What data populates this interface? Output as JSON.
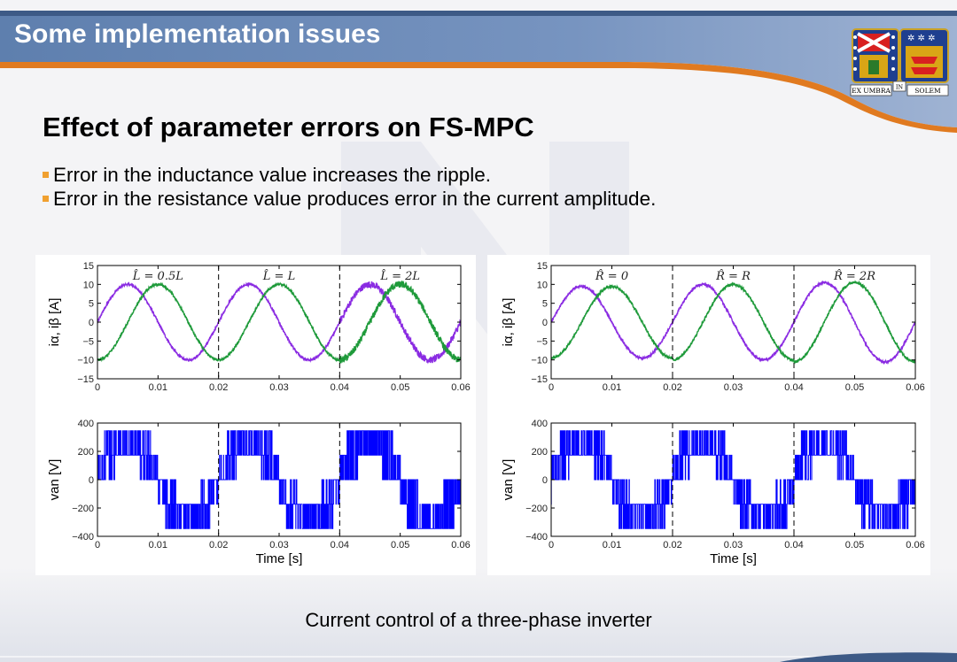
{
  "header": {
    "title": "Some implementation issues"
  },
  "logo": {
    "motto_left": "EX UMBRA",
    "motto_mid": "IN",
    "motto_right": "SOLEM"
  },
  "slide": {
    "heading": "Effect of parameter errors on FS-MPC",
    "bullets": [
      "Error in the inductance value increases the ripple.",
      "Error in the resistance value produces error in the current amplitude."
    ],
    "caption": "Current control of a three-phase inverter"
  },
  "colors": {
    "header": "#6f8db8",
    "accent": "#f0a030",
    "ialpha": "#8a2be2",
    "ibeta": "#1e9a3a",
    "voltage": "#0000ff"
  },
  "chart_data": [
    {
      "type": "line",
      "ylabel": "iα, iβ [A]",
      "xlim": [
        0,
        0.06
      ],
      "ylim": [
        -15,
        15
      ],
      "xticks": [
        "0",
        "0.01",
        "0.02",
        "0.03",
        "0.04",
        "0.05",
        "0.06"
      ],
      "yticks": [
        "15",
        "10",
        "5",
        "0",
        "−5",
        "−10",
        "−15"
      ],
      "dividers": [
        0.02,
        0.04
      ],
      "annotations": [
        {
          "x": 0.01,
          "text": "L̂ = 0.5L"
        },
        {
          "x": 0.03,
          "text": "L̂ = L"
        },
        {
          "x": 0.05,
          "text": "L̂ = 2L"
        }
      ],
      "series": [
        {
          "amplitude": 10,
          "frequency_hz": 50,
          "phase_deg": 0
        },
        {
          "amplitude": 10,
          "frequency_hz": 50,
          "phase_deg": -90
        }
      ],
      "ripple_amplitude": [
        0.3,
        0.3,
        0.9
      ]
    },
    {
      "type": "line",
      "ylabel": "iα, iβ [A]",
      "xlim": [
        0,
        0.06
      ],
      "ylim": [
        -15,
        15
      ],
      "xticks": [
        "0",
        "0.01",
        "0.02",
        "0.03",
        "0.04",
        "0.05",
        "0.06"
      ],
      "yticks": [
        "15",
        "10",
        "5",
        "0",
        "−5",
        "−10",
        "−15"
      ],
      "dividers": [
        0.02,
        0.04
      ],
      "annotations": [
        {
          "x": 0.01,
          "text": "R̂ = 0"
        },
        {
          "x": 0.03,
          "text": "R̂ = R"
        },
        {
          "x": 0.05,
          "text": "R̂ = 2R"
        }
      ],
      "series": [
        {
          "amplitude": 10,
          "frequency_hz": 50,
          "phase_deg": 0
        },
        {
          "amplitude": 10,
          "frequency_hz": 50,
          "phase_deg": -90
        }
      ],
      "ripple_amplitude": [
        0.3,
        0.3,
        0.3
      ],
      "amplitude_by_segment": [
        9.5,
        10,
        10.5
      ]
    },
    {
      "type": "line",
      "ylabel": "van [V]",
      "xlabel": "Time [s]",
      "xlim": [
        0,
        0.06
      ],
      "ylim": [
        -400,
        400
      ],
      "xticks": [
        "0",
        "0.01",
        "0.02",
        "0.03",
        "0.04",
        "0.05",
        "0.06"
      ],
      "yticks": [
        "400",
        "200",
        "0",
        "−200",
        "−400"
      ],
      "dividers": [
        0.02,
        0.04
      ],
      "levels": [
        -346,
        -173,
        0,
        173,
        346
      ],
      "switching_density_by_segment": [
        0.5,
        0.55,
        1.0
      ]
    },
    {
      "type": "line",
      "ylabel": "van [V]",
      "xlabel": "Time [s]",
      "xlim": [
        0,
        0.06
      ],
      "ylim": [
        -400,
        400
      ],
      "xticks": [
        "0",
        "0.01",
        "0.02",
        "0.03",
        "0.04",
        "0.05",
        "0.06"
      ],
      "yticks": [
        "400",
        "200",
        "0",
        "−200",
        "−400"
      ],
      "dividers": [
        0.02,
        0.04
      ],
      "levels": [
        -346,
        -173,
        0,
        173,
        346
      ],
      "switching_density_by_segment": [
        0.55,
        0.55,
        0.55
      ]
    }
  ]
}
